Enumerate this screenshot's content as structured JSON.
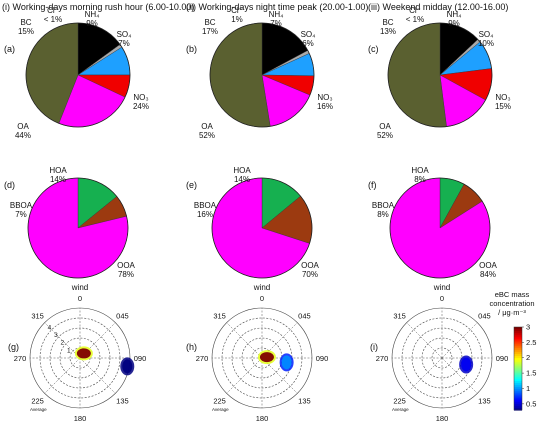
{
  "columns": [
    {
      "title": "(i) Working-days morning rush hour (6.00-10.00)"
    },
    {
      "title": "(ii) Working-days night time peak (20.00-1.00)"
    },
    {
      "title": "(iii) Weekend midday (12.00-16.00)"
    }
  ],
  "colors": {
    "BC": "#000000",
    "Cl": "#aaaaaa",
    "NH4": "#1ea0ff",
    "SO4": "#f00000",
    "NO3": "#ff00ff",
    "OA": "#5a6030",
    "HOA": "#16b050",
    "BBOA": "#9c3a10",
    "OOA": "#ff00ff"
  },
  "chart_data": [
    {
      "type": "pie",
      "panel": "(a)",
      "title": "(i) Working-days morning rush hour (6.00-10.00)",
      "slices": [
        {
          "label": "BC",
          "value": 15,
          "text": "15%"
        },
        {
          "label": "Cl⁻",
          "value": 1,
          "text": "< 1%"
        },
        {
          "label": "NH₄",
          "value": 9,
          "text": "9%"
        },
        {
          "label": "SO₄",
          "value": 7,
          "text": "7%"
        },
        {
          "label": "NO₃",
          "value": 24,
          "text": "24%"
        },
        {
          "label": "OA",
          "value": 44,
          "text": "44%"
        }
      ]
    },
    {
      "type": "pie",
      "panel": "(b)",
      "title": "(ii) Working-days night time peak (20.00-1.00)",
      "slices": [
        {
          "label": "BC",
          "value": 17,
          "text": "17%"
        },
        {
          "label": "Cl⁻",
          "value": 1,
          "text": "1%"
        },
        {
          "label": "NH₄",
          "value": 7,
          "text": "7%"
        },
        {
          "label": "SO₄",
          "value": 6,
          "text": "6%"
        },
        {
          "label": "NO₃",
          "value": 16,
          "text": "16%"
        },
        {
          "label": "OA",
          "value": 52,
          "text": "52%"
        }
      ]
    },
    {
      "type": "pie",
      "panel": "(c)",
      "title": "(iii) Weekend midday (12.00-16.00)",
      "slices": [
        {
          "label": "BC",
          "value": 13,
          "text": "13%"
        },
        {
          "label": "Cl⁻",
          "value": 1,
          "text": "< 1%"
        },
        {
          "label": "NH₄",
          "value": 9,
          "text": "9%"
        },
        {
          "label": "SO₄",
          "value": 10,
          "text": "10%"
        },
        {
          "label": "NO₃",
          "value": 15,
          "text": "15%"
        },
        {
          "label": "OA",
          "value": 52,
          "text": "52%"
        }
      ]
    },
    {
      "type": "pie",
      "panel": "(d)",
      "slices": [
        {
          "label": "HOA",
          "value": 14,
          "text": "14%"
        },
        {
          "label": "BBOA",
          "value": 7,
          "text": "7%"
        },
        {
          "label": "OOA",
          "value": 78,
          "text": "78%"
        }
      ]
    },
    {
      "type": "pie",
      "panel": "(e)",
      "slices": [
        {
          "label": "HOA",
          "value": 14,
          "text": "14%"
        },
        {
          "label": "BBOA",
          "value": 16,
          "text": "16%"
        },
        {
          "label": "OOA",
          "value": 70,
          "text": "70%"
        }
      ]
    },
    {
      "type": "pie",
      "panel": "(f)",
      "slices": [
        {
          "label": "HOA",
          "value": 8,
          "text": "8%"
        },
        {
          "label": "BBOA",
          "value": 8,
          "text": "8%"
        },
        {
          "label": "OOA",
          "value": 84,
          "text": "84%"
        }
      ]
    },
    {
      "type": "polar",
      "panel": "(g)",
      "title": "wind",
      "angle_labels": [
        "0",
        "045",
        "090",
        "135",
        "180",
        "225",
        "270",
        "315"
      ],
      "radial_ticks": [
        1,
        2,
        3,
        4
      ],
      "footer": "Average",
      "hotspots": [
        {
          "direction_deg": 40,
          "radius": 0.6,
          "value": 3
        },
        {
          "direction_deg": 100,
          "radius": 4.8,
          "value": 0.3
        }
      ]
    },
    {
      "type": "polar",
      "panel": "(h)",
      "title": "wind",
      "angle_labels": [
        "0",
        "045",
        "090",
        "135",
        "180",
        "225",
        "270",
        "315"
      ],
      "footer": "Average",
      "hotspots": [
        {
          "direction_deg": 80,
          "radius": 0.5,
          "value": 3
        },
        {
          "direction_deg": 100,
          "radius": 2.5,
          "value": 1
        }
      ]
    },
    {
      "type": "polar",
      "panel": "(i)",
      "title": "wind",
      "angle_labels": [
        "0",
        "045",
        "090",
        "135",
        "180",
        "225",
        "270",
        "315"
      ],
      "footer": "Average",
      "hotspots": [
        {
          "direction_deg": 105,
          "radius": 2.5,
          "value": 0.6
        }
      ]
    },
    {
      "type": "colorbar",
      "title": "eBC mass concentration / μg·m⁻³",
      "ticks": [
        0.5,
        1,
        1.5,
        2,
        2.5,
        3
      ],
      "range": [
        0.3,
        3
      ]
    }
  ]
}
